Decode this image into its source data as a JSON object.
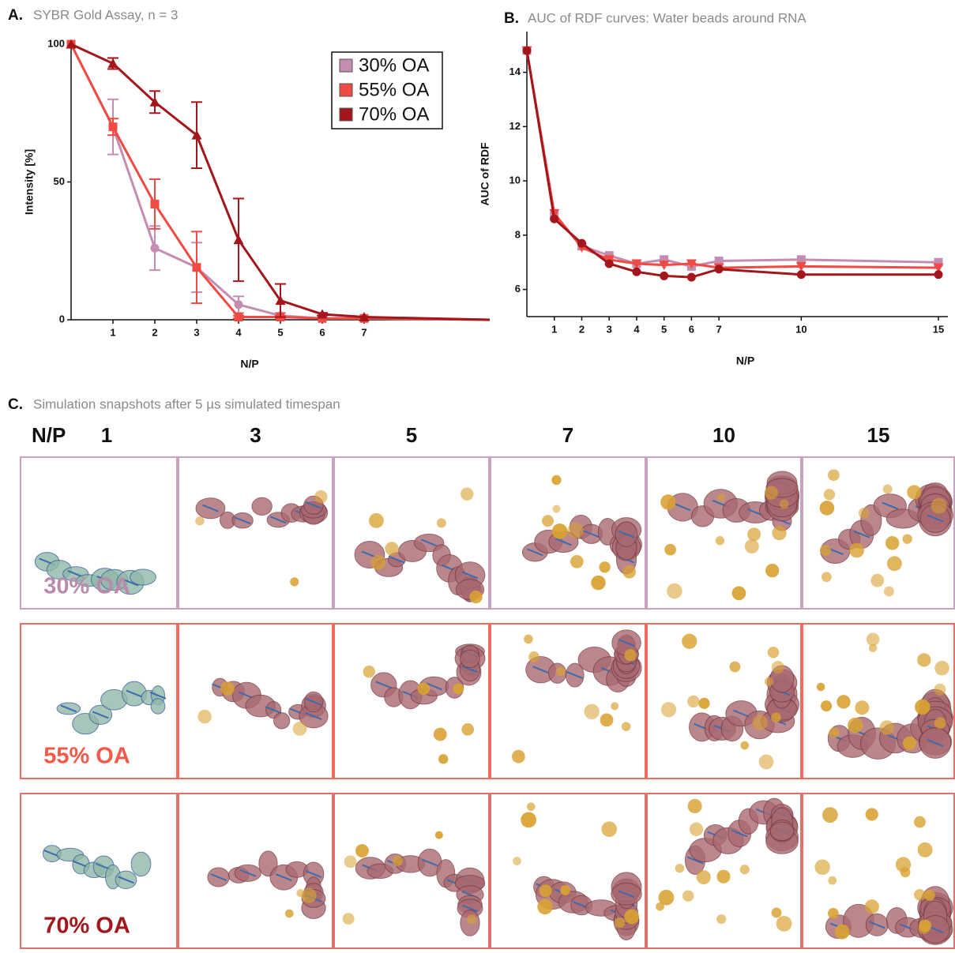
{
  "chart_data": [
    {
      "type": "line",
      "label": "A.",
      "title": "SYBR Gold Assay, n = 3",
      "x_label": "N/P",
      "y_label": "Intensity [%]",
      "x": [
        0,
        1,
        2,
        3,
        4,
        5,
        6,
        7,
        10
      ],
      "xlim": [
        0,
        10
      ],
      "xticks": [
        1,
        2,
        3,
        4,
        5,
        6,
        7
      ],
      "ylim": [
        0,
        100
      ],
      "yticks": [
        0,
        50,
        100
      ],
      "legend": "upper right",
      "series": [
        {
          "name": "30% OA",
          "color": "#c48cb1",
          "marker": "circle",
          "values": [
            100,
            70,
            26,
            19,
            5.5,
            1.5,
            0.5,
            0.5,
            0
          ],
          "errors": [
            0,
            10,
            8,
            9,
            3,
            1,
            0,
            0,
            0
          ]
        },
        {
          "name": "55% OA",
          "color": "#ef4a43",
          "marker": "square",
          "values": [
            100,
            70,
            42,
            19,
            1,
            1,
            0.5,
            0.5,
            0
          ],
          "errors": [
            0,
            3,
            9,
            13,
            0.5,
            0.5,
            0,
            0,
            0
          ]
        },
        {
          "name": "70% OA",
          "color": "#a3161b",
          "marker": "triangle",
          "values": [
            100,
            93,
            79,
            67,
            29,
            7,
            2,
            1,
            0
          ],
          "errors": [
            0,
            2,
            4,
            12,
            15,
            6,
            0.5,
            0,
            0
          ]
        }
      ]
    },
    {
      "type": "line",
      "label": "B.",
      "title": "AUC of RDF curves: Water beads around RNA",
      "x_label": "N/P",
      "y_label": "AUC of RDF",
      "x": [
        0,
        1,
        2,
        3,
        4,
        5,
        6,
        7,
        10,
        15
      ],
      "xlim": [
        0,
        15
      ],
      "xticks": [
        1,
        2,
        3,
        4,
        5,
        6,
        7,
        10,
        15
      ],
      "ylim": [
        5,
        15.5
      ],
      "yticks": [
        6,
        8,
        10,
        12,
        14
      ],
      "series": [
        {
          "name": "30% OA",
          "color": "#c48cb1",
          "marker": "square",
          "values": [
            14.8,
            8.7,
            7.6,
            7.25,
            6.95,
            7.1,
            6.85,
            7.05,
            7.1,
            7.0
          ]
        },
        {
          "name": "55% OA",
          "color": "#ef4a43",
          "marker": "triangle-down",
          "values": [
            14.8,
            8.8,
            7.55,
            7.1,
            6.95,
            6.9,
            6.95,
            6.8,
            6.85,
            6.8
          ]
        },
        {
          "name": "70% OA",
          "color": "#a3161b",
          "marker": "circle",
          "values": [
            14.8,
            8.6,
            7.7,
            6.95,
            6.65,
            6.5,
            6.45,
            6.75,
            6.55,
            6.55
          ]
        }
      ]
    }
  ],
  "snapshots": {
    "label": "C.",
    "title": "Simulation snapshots after 5 µs simulated timespan",
    "header": "N/P",
    "columns": [
      "1",
      "3",
      "5",
      "7",
      "10",
      "15"
    ],
    "rows": [
      {
        "label": "30% OA",
        "color": "#b98aa9",
        "border": "#c9a0bd"
      },
      {
        "label": "55% OA",
        "color": "#f05a4a",
        "border": "#f06a60"
      },
      {
        "label": "70% OA",
        "color": "#a3161b",
        "border": "#e0706a"
      }
    ]
  }
}
